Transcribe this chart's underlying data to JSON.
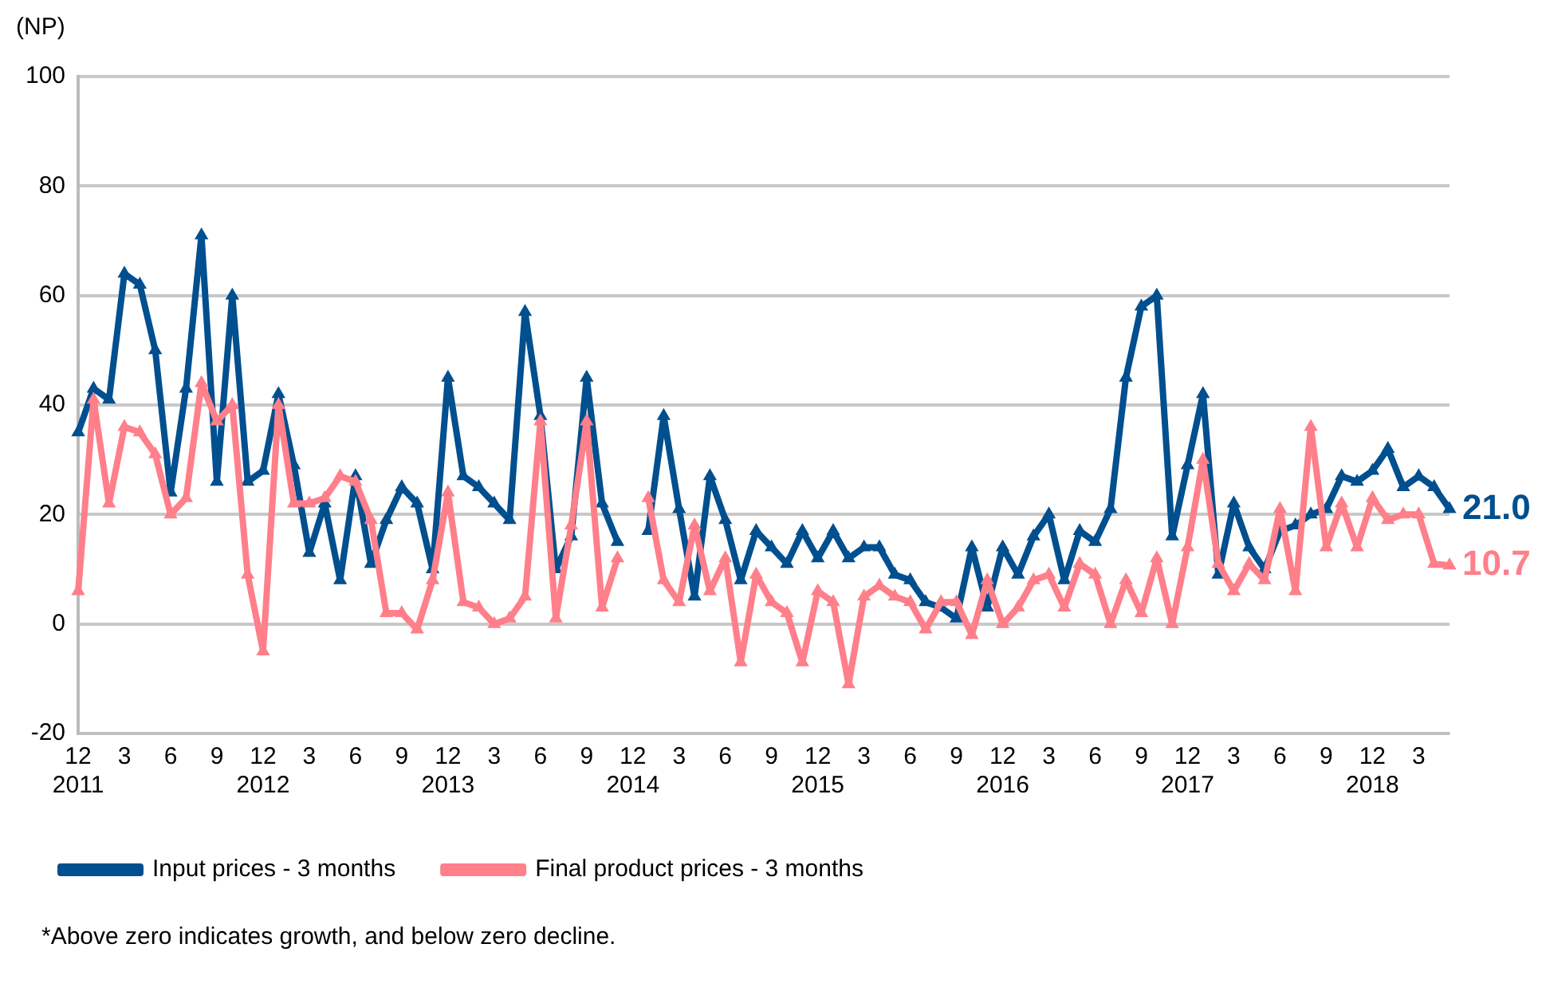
{
  "chart_data": {
    "type": "line",
    "ylabel": "(NP)",
    "categories": [
      "12\n2011",
      null,
      null,
      "3",
      null,
      null,
      "6",
      null,
      null,
      "9",
      null,
      null,
      "12\n2012",
      null,
      null,
      "3",
      null,
      null,
      "6",
      null,
      null,
      "9",
      null,
      null,
      "12\n2013",
      null,
      null,
      "3",
      null,
      null,
      "6",
      null,
      null,
      "9",
      null,
      null,
      "12\n2014",
      null,
      null,
      "3",
      null,
      null,
      "6",
      null,
      null,
      "9",
      null,
      null,
      "12\n2015",
      null,
      null,
      "3",
      null,
      null,
      "6",
      null,
      null,
      "9",
      null,
      null,
      "12\n2016",
      null,
      null,
      "3",
      null,
      null,
      "6",
      null,
      null,
      "9",
      null,
      null,
      "12\n2017",
      null,
      null,
      "3",
      null,
      null,
      "6",
      null,
      null,
      "9",
      null,
      null,
      "12\n2018",
      null,
      null,
      "3",
      null,
      null
    ],
    "series": [
      {
        "name": "Input prices - 3 months",
        "color": "#004f8f",
        "values": [
          35,
          43,
          41,
          64,
          62,
          50,
          24,
          43,
          71,
          26,
          60,
          26,
          28,
          42,
          29,
          13,
          22,
          8,
          27,
          11,
          19,
          25,
          22,
          10,
          45,
          27,
          25,
          22,
          19,
          57,
          38,
          10,
          16,
          45,
          22,
          15,
          null,
          17,
          38,
          21,
          5,
          27,
          19,
          8,
          17,
          14,
          11,
          17,
          12,
          17,
          12,
          14,
          14,
          9,
          8,
          4,
          3,
          1,
          14,
          3,
          14,
          9,
          16,
          20,
          8,
          17,
          15,
          21,
          45,
          58,
          60,
          16,
          29,
          42,
          9,
          22,
          14,
          10,
          17,
          18,
          20,
          21,
          27,
          26,
          28,
          32,
          25,
          27,
          25,
          21.0
        ],
        "value_labels": [
          null,
          null,
          null,
          null,
          null,
          null,
          null,
          null,
          null,
          null,
          null,
          null,
          null,
          null,
          null,
          null,
          null,
          null,
          null,
          null,
          null,
          null,
          null,
          null,
          null,
          null,
          null,
          null,
          null,
          null,
          null,
          null,
          null,
          null,
          null,
          null,
          null,
          null,
          null,
          null,
          null,
          null,
          null,
          null,
          null,
          null,
          null,
          null,
          null,
          null,
          null,
          null,
          null,
          null,
          null,
          null,
          null,
          null,
          null,
          null,
          null,
          null,
          null,
          null,
          null,
          null,
          null,
          null,
          null,
          null,
          null,
          null,
          null,
          null,
          null,
          null,
          null,
          null,
          null,
          null,
          null,
          null,
          null,
          null,
          null,
          null,
          null,
          null,
          null,
          "21.0"
        ]
      },
      {
        "name": "Final product prices - 3 months",
        "color": "#ff7f8a",
        "values": [
          6,
          41,
          22,
          36,
          35,
          31,
          20,
          23,
          44,
          37,
          40,
          9,
          -5,
          40,
          22,
          22,
          23,
          27,
          26,
          19,
          2,
          2,
          -1,
          8,
          24,
          4,
          3,
          0,
          1,
          5,
          37,
          1,
          18,
          37,
          3,
          12,
          null,
          23,
          8,
          4,
          18,
          6,
          12,
          -7,
          9,
          4,
          2,
          -7,
          6,
          4,
          -11,
          5,
          7,
          5,
          4,
          -1,
          4,
          4,
          -2,
          8,
          0,
          3,
          8,
          9,
          3,
          11,
          9,
          0,
          8,
          2,
          12,
          0,
          14,
          30,
          11,
          6,
          11,
          8,
          21,
          6,
          36,
          14,
          22,
          14,
          23,
          19,
          20,
          20,
          11,
          10.7
        ],
        "value_labels": [
          null,
          null,
          null,
          null,
          null,
          null,
          null,
          null,
          null,
          null,
          null,
          null,
          null,
          null,
          null,
          null,
          null,
          null,
          null,
          null,
          null,
          null,
          null,
          null,
          null,
          null,
          null,
          null,
          null,
          null,
          null,
          null,
          null,
          null,
          null,
          null,
          null,
          null,
          null,
          null,
          null,
          null,
          null,
          null,
          null,
          null,
          null,
          null,
          null,
          null,
          null,
          null,
          null,
          null,
          null,
          null,
          null,
          null,
          null,
          null,
          null,
          null,
          null,
          null,
          null,
          null,
          null,
          null,
          null,
          null,
          null,
          null,
          null,
          null,
          null,
          null,
          null,
          null,
          null,
          null,
          null,
          null,
          null,
          null,
          null,
          null,
          null,
          null,
          null,
          "10.7"
        ]
      }
    ],
    "ylim": [
      -20,
      100
    ],
    "yticks": [
      -20,
      0,
      20,
      40,
      60,
      80,
      100
    ],
    "grid": "y",
    "legend": "bottom left",
    "marker": "triangle",
    "line_style": "solid",
    "annotations": [
      "*Above zero indicates growth, and below zero decline."
    ]
  }
}
